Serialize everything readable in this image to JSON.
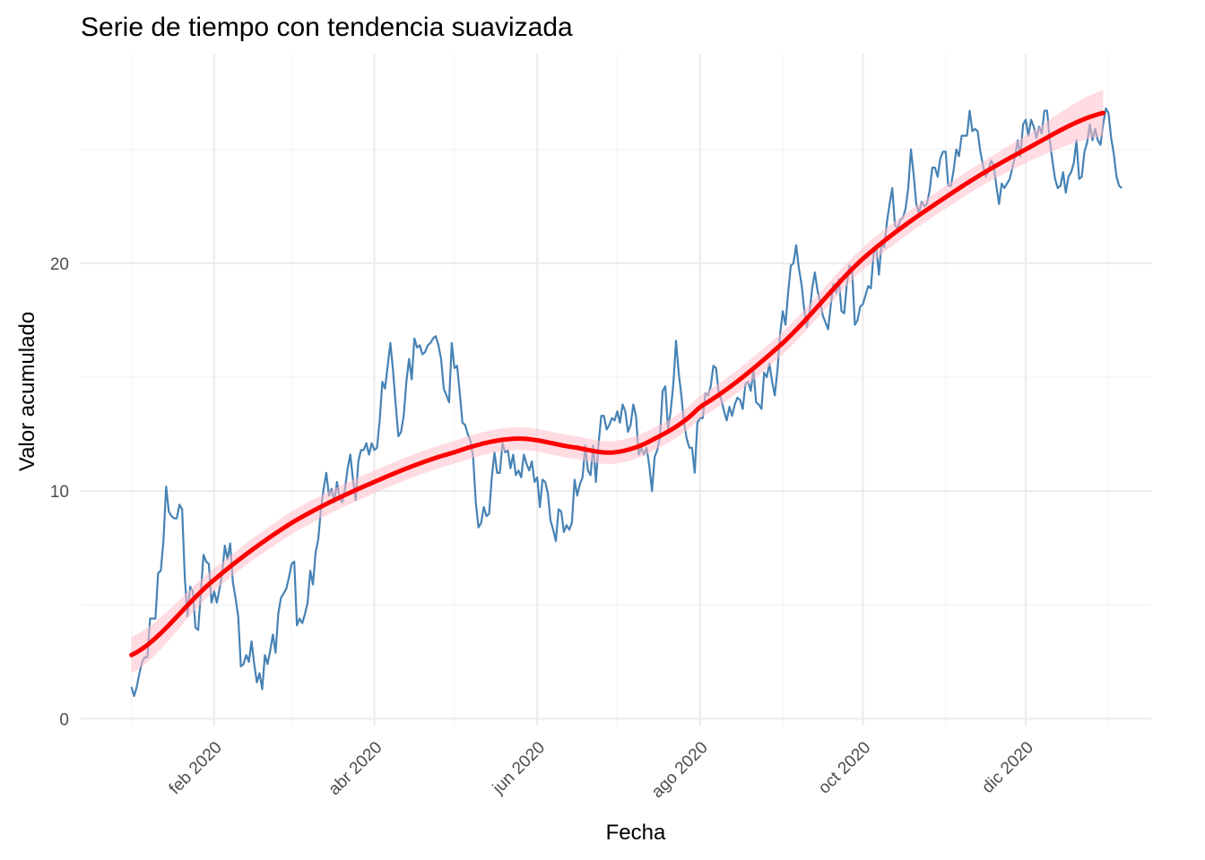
{
  "chart_data": {
    "type": "line",
    "title": "Serie de tiempo con tendencia suavizada",
    "xlabel": "Fecha",
    "ylabel": "Valor acumulado",
    "x_start": "2020-01-01",
    "x_end": "2020-12-30",
    "xlim": [
      "2019-12-13",
      "2021-01-17"
    ],
    "ylim": [
      -0.3,
      29.2
    ],
    "x_ticks": [
      {
        "date": "2020-02-01",
        "label": "feb 2020"
      },
      {
        "date": "2020-04-01",
        "label": "abr 2020"
      },
      {
        "date": "2020-06-01",
        "label": "jun 2020"
      },
      {
        "date": "2020-08-01",
        "label": "ago 2020"
      },
      {
        "date": "2020-10-01",
        "label": "oct 2020"
      },
      {
        "date": "2020-12-01",
        "label": "dic 2020"
      }
    ],
    "x_minor_ticks": [
      "2020-01-01",
      "2020-03-01",
      "2020-05-01",
      "2020-07-01",
      "2020-09-01",
      "2020-11-01",
      "2021-01-01"
    ],
    "y_ticks": [
      0,
      10,
      20
    ],
    "y_minor_ticks": [
      5,
      15,
      25
    ],
    "grid": true,
    "legend": "none",
    "series": [
      {
        "color": "#4682b4",
        "values": [
          1.4,
          1.0,
          1.4,
          2.0,
          2.5,
          2.7,
          2.7,
          4.4,
          4.4,
          4.4,
          6.4,
          6.5,
          7.8,
          10.2,
          9.1,
          8.9,
          8.8,
          8.8,
          9.4,
          9.2,
          6.2,
          4.5,
          5.8,
          5.6,
          4.0,
          3.9,
          5.5,
          7.2,
          6.9,
          6.8,
          5.1,
          5.6,
          5.1,
          5.7,
          6.4,
          7.6,
          7.0,
          7.7,
          6.0,
          5.3,
          4.5,
          2.3,
          2.4,
          2.8,
          2.5,
          3.4,
          2.4,
          1.6,
          2.0,
          1.3,
          2.8,
          2.4,
          3.0,
          3.7,
          2.9,
          4.6,
          5.3,
          5.5,
          5.7,
          6.2,
          6.8,
          6.9,
          4.1,
          4.4,
          4.2,
          4.6,
          5.1,
          6.5,
          5.9,
          7.3,
          7.9,
          9.2,
          10.1,
          10.8,
          9.8,
          10.1,
          9.5,
          10.4,
          9.7,
          9.5,
          10.1,
          11.0,
          11.6,
          10.5,
          9.6,
          11.3,
          11.8,
          11.8,
          12.1,
          11.6,
          12.1,
          11.8,
          11.9,
          13.1,
          14.8,
          14.5,
          15.5,
          16.5,
          15.3,
          13.8,
          12.4,
          12.6,
          13.3,
          14.8,
          15.8,
          14.9,
          16.7,
          16.3,
          16.4,
          16.0,
          16.1,
          16.4,
          16.5,
          16.7,
          16.8,
          16.4,
          15.8,
          14.5,
          14.2,
          13.9,
          16.5,
          15.4,
          15.5,
          14.3,
          13.0,
          12.9,
          12.5,
          12.2,
          11.5,
          9.5,
          8.4,
          8.6,
          9.3,
          8.9,
          9.0,
          10.6,
          11.7,
          10.8,
          10.8,
          12.1,
          11.7,
          11.8,
          11.0,
          11.6,
          10.7,
          10.9,
          10.6,
          11.6,
          11.2,
          10.9,
          11.3,
          10.4,
          10.6,
          9.3,
          10.5,
          10.4,
          9.9,
          8.7,
          8.3,
          7.8,
          9.2,
          9.1,
          8.2,
          8.5,
          8.3,
          8.6,
          10.5,
          9.8,
          10.3,
          10.6,
          12.0,
          10.9,
          10.7,
          12.0,
          10.4,
          12.1,
          13.3,
          13.3,
          12.7,
          12.9,
          13.2,
          13.1,
          13.5,
          13.0,
          13.8,
          13.5,
          12.6,
          12.9,
          13.8,
          13.3,
          11.6,
          11.9,
          11.6,
          11.9,
          11.1,
          10.0,
          11.5,
          11.8,
          12.4,
          14.4,
          14.6,
          12.7,
          13.5,
          14.7,
          16.6,
          15.2,
          14.2,
          13.0,
          12.3,
          11.9,
          11.9,
          10.8,
          13.0,
          13.2,
          13.2,
          14.3,
          14.2,
          14.6,
          15.5,
          15.4,
          14.3,
          14.0,
          13.5,
          13.1,
          13.7,
          13.3,
          13.8,
          14.1,
          14.0,
          13.6,
          14.7,
          14.8,
          14.4,
          15.3,
          13.9,
          13.8,
          13.6,
          15.2,
          15.0,
          15.6,
          14.8,
          14.2,
          15.3,
          16.9,
          17.9,
          17.3,
          18.7,
          19.9,
          20.0,
          20.8,
          19.8,
          19.1,
          18.0,
          17.2,
          17.8,
          18.9,
          19.6,
          18.8,
          18.3,
          17.7,
          17.4,
          17.1,
          18.2,
          19.1,
          18.7,
          19.3,
          17.9,
          17.8,
          19.1,
          19.9,
          19.6,
          17.3,
          17.5,
          18.1,
          18.2,
          18.6,
          19.0,
          18.9,
          20.4,
          20.7,
          19.5,
          20.9,
          20.7,
          21.8,
          22.6,
          23.3,
          21.7,
          21.5,
          21.9,
          22.0,
          22.4,
          23.3,
          25.0,
          23.9,
          22.6,
          22.2,
          22.7,
          22.5,
          22.6,
          23.2,
          24.2,
          24.2,
          23.8,
          24.6,
          24.9,
          24.9,
          23.4,
          23.4,
          24.1,
          25.0,
          24.7,
          25.6,
          25.6,
          25.6,
          26.7,
          25.8,
          25.9,
          25.8,
          24.9,
          24.3,
          23.8,
          24.1,
          24.5,
          24.3,
          23.4,
          22.6,
          23.5,
          23.3,
          23.5,
          23.7,
          24.2,
          24.7,
          25.4,
          24.7,
          26.1,
          26.3,
          25.6,
          26.3,
          26.0,
          25.5,
          26.0,
          25.7,
          26.7,
          26.7,
          25.4,
          24.5,
          23.7,
          23.3,
          23.4,
          24.0,
          23.1,
          23.8,
          24.0,
          24.4,
          25.4,
          23.7,
          23.8,
          24.9,
          25.3,
          26.1,
          25.4,
          25.9,
          25.4,
          25.2,
          26.1,
          26.8,
          26.6,
          25.5,
          24.8,
          23.8,
          23.4,
          23.3
        ]
      },
      {
        "color": "#ff0000",
        "smooth": true,
        "band_color": "#ffc0cb",
        "x": [
          "2020-01-01",
          "2020-02-01",
          "2020-03-01",
          "2020-04-01",
          "2020-05-01",
          "2020-05-24",
          "2020-06-16",
          "2020-06-30",
          "2020-07-15",
          "2020-08-01",
          "2020-09-01",
          "2020-10-01",
          "2020-11-01",
          "2020-12-01",
          "2020-12-30"
        ],
        "values": [
          2.8,
          6.1,
          8.6,
          10.4,
          11.7,
          12.3,
          11.9,
          11.7,
          12.3,
          13.7,
          16.5,
          20.2,
          22.9,
          25.0,
          26.6
        ],
        "band": [
          0.8,
          0.5,
          0.5,
          0.5,
          0.5,
          0.5,
          0.5,
          0.5,
          0.5,
          0.5,
          0.5,
          0.5,
          0.5,
          0.6,
          1.0
        ]
      }
    ]
  }
}
